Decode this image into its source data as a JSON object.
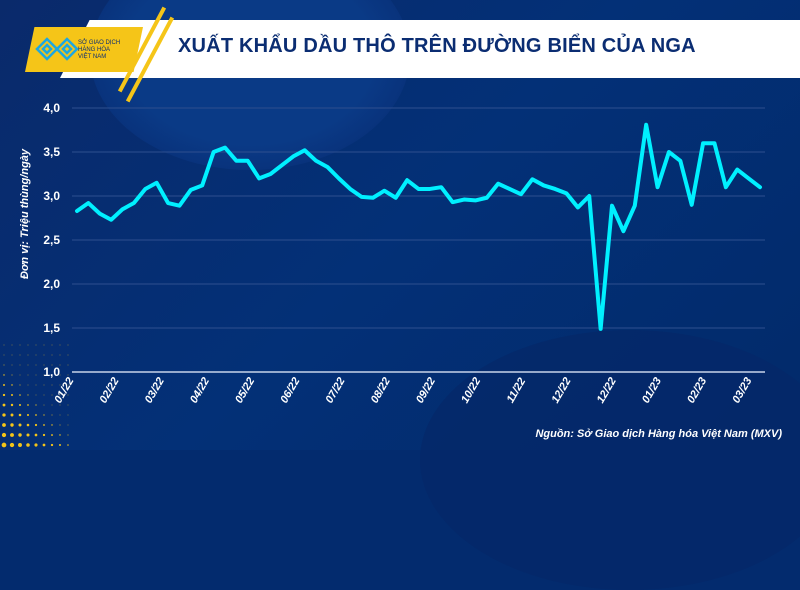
{
  "header": {
    "title": "XUẤT KHẨU DẦU THÔ TRÊN ĐƯỜNG BIỂN CỦA NGA",
    "logo_text": [
      "SỞ GIAO DỊCH",
      "HÀNG HÓA",
      "VIỆT NAM"
    ]
  },
  "source": "Nguồn: Sở Giao dịch Hàng hóa Việt Nam (MXV)",
  "colors": {
    "background": "#03306f",
    "line": "#00f0ff",
    "header_accent": "#f5c518",
    "title": "#0b2d72"
  },
  "chart_data": {
    "type": "line",
    "title": "XUẤT KHẨU DẦU THÔ TRÊN ĐƯỜNG BIỂN CỦA NGA",
    "ylabel": "Đơn vị: Triệu thùng/ngày",
    "ylim": [
      1.0,
      4.0
    ],
    "yticks": [
      "1,0",
      "1,5",
      "2,0",
      "2,5",
      "3,0",
      "3,5",
      "4,0"
    ],
    "xticks": [
      "01/22",
      "02/22",
      "03/22",
      "04/22",
      "05/22",
      "06/22",
      "07/22",
      "08/22",
      "09/22",
      "10/22",
      "11/22",
      "12/22",
      "12/22",
      "01/23",
      "02/23",
      "03/23"
    ],
    "grid": true,
    "series": [
      {
        "values": [
          2.83,
          2.92,
          2.8,
          2.73,
          2.85,
          2.92,
          3.08,
          3.15,
          2.92,
          2.89,
          3.07,
          3.12,
          3.5,
          3.55,
          3.4,
          3.4,
          3.2,
          3.25,
          3.35,
          3.45,
          3.52,
          3.4,
          3.33,
          3.2,
          3.08,
          2.99,
          2.98,
          3.06,
          2.98,
          3.18,
          3.08,
          3.08,
          3.1,
          2.93,
          2.96,
          2.95,
          2.98,
          3.14,
          3.08,
          3.02,
          3.19,
          3.12,
          3.08,
          3.03,
          2.87,
          3.0,
          1.49,
          2.89,
          2.6,
          2.89,
          3.81,
          3.1,
          3.5,
          3.4,
          2.9,
          3.6,
          3.6,
          3.1,
          3.3,
          3.2,
          3.1
        ]
      }
    ]
  }
}
